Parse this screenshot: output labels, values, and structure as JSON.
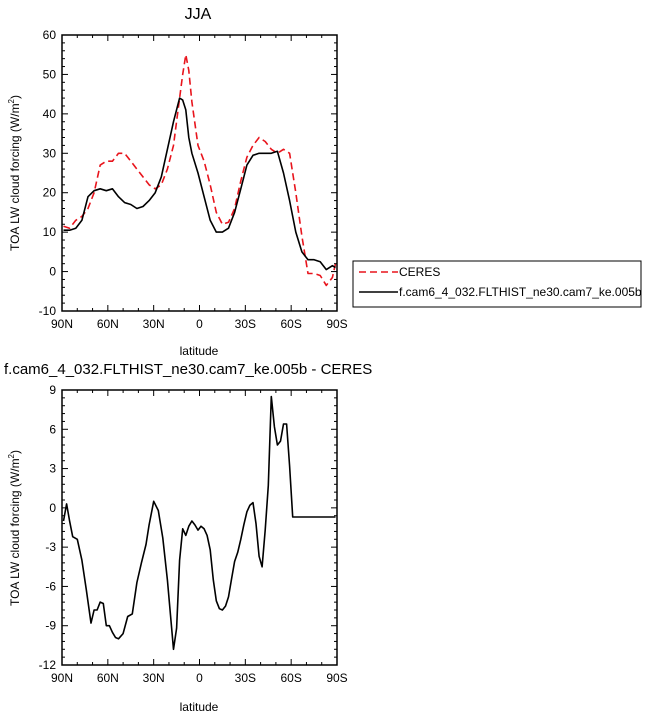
{
  "chart_data": [
    {
      "type": "line",
      "title": "JJA",
      "xlabel": "latitude",
      "ylabel": "TOA LW cloud forcing (W/m²)",
      "ylabel_parts": {
        "main": "TOA LW cloud forcing (W/m",
        "sup": "2",
        "end": ")"
      },
      "xlim": [
        -90,
        90
      ],
      "ylim": [
        -10,
        60
      ],
      "x_ticks": [
        -90,
        -60,
        -30,
        0,
        30,
        60,
        90
      ],
      "x_tick_labels": [
        "90N",
        "60N",
        "30N",
        "0",
        "30S",
        "60S",
        "90S"
      ],
      "y_ticks": [
        -10,
        0,
        10,
        20,
        30,
        40,
        50,
        60
      ],
      "y_tick_labels": [
        "-10",
        "0",
        "10",
        "20",
        "30",
        "40",
        "50",
        "60"
      ],
      "grid": false,
      "legend_placement": "outside-right",
      "series": [
        {
          "name": "CERES",
          "color": "#e8141c",
          "dash": "dashed",
          "x": [
            -89,
            -85,
            -81,
            -77,
            -73,
            -69,
            -65,
            -61,
            -57,
            -53,
            -49,
            -45,
            -41,
            -37,
            -33,
            -29,
            -25,
            -21,
            -17,
            -13,
            -11,
            -9,
            -7,
            -5,
            -1,
            3,
            7,
            11,
            15,
            19,
            23,
            27,
            31,
            35,
            39,
            43,
            47,
            51,
            55,
            59,
            63,
            67,
            71,
            75,
            79,
            83,
            87,
            89
          ],
          "y": [
            11.5,
            11,
            13,
            14,
            16,
            20,
            27,
            28,
            28,
            30,
            30,
            28,
            26,
            24,
            22,
            21,
            22,
            26,
            32,
            44,
            50,
            55,
            51,
            43,
            32,
            28,
            22,
            15,
            12,
            12.5,
            16,
            23,
            29,
            32,
            34,
            33,
            31,
            30,
            31,
            30,
            20,
            9,
            -0.5,
            -0.5,
            -1,
            -3.5,
            -1.5,
            2
          ]
        },
        {
          "name": "f.cam6_4_032.FLTHIST_ne30.cam7_ke.005b",
          "color": "#000000",
          "dash": "solid",
          "x": [
            -89,
            -85,
            -81,
            -77,
            -73,
            -69,
            -65,
            -61,
            -57,
            -53,
            -49,
            -45,
            -41,
            -37,
            -33,
            -29,
            -25,
            -21,
            -17,
            -13,
            -11,
            -9,
            -7,
            -5,
            -1,
            3,
            7,
            11,
            15,
            19,
            23,
            27,
            31,
            35,
            39,
            43,
            47,
            51,
            55,
            59,
            63,
            67,
            71,
            75,
            79,
            83,
            87,
            89
          ],
          "y": [
            10.5,
            10.5,
            11,
            13,
            19,
            20.5,
            21,
            20.5,
            21,
            19,
            17.5,
            17,
            16,
            16.5,
            18,
            20,
            24,
            31,
            38,
            44,
            43.5,
            41,
            34,
            30,
            25,
            19,
            13,
            10,
            10,
            11,
            15,
            21,
            27,
            29.5,
            30,
            30,
            30,
            30.5,
            25,
            18,
            10,
            5,
            3,
            3,
            2.5,
            0.5,
            1.5,
            1
          ]
        }
      ]
    },
    {
      "type": "line",
      "title": "f.cam6_4_032.FLTHIST_ne30.cam7_ke.005b - CERES",
      "xlabel": "latitude",
      "ylabel": "TOA LW cloud forcing (W/m²)",
      "ylabel_parts": {
        "main": "TOA LW cloud forcing (W/m",
        "sup": "2",
        "end": ")"
      },
      "xlim": [
        -90,
        90
      ],
      "ylim": [
        -12,
        9
      ],
      "x_ticks": [
        -90,
        -60,
        -30,
        0,
        30,
        60,
        90
      ],
      "x_tick_labels": [
        "90N",
        "60N",
        "30N",
        "0",
        "30S",
        "60S",
        "90S"
      ],
      "y_ticks": [
        -12,
        -9,
        -6,
        -3,
        0,
        3,
        6,
        9
      ],
      "y_tick_labels": [
        "-12",
        "-9",
        "-6",
        "-3",
        "0",
        "3",
        "6",
        "9"
      ],
      "grid": false,
      "series": [
        {
          "color": "#000000",
          "dash": "solid",
          "x": [
            -89,
            -87,
            -85,
            -83,
            -80,
            -77,
            -74,
            -71,
            -69,
            -67,
            -65,
            -63,
            -61,
            -59,
            -57,
            -55,
            -53,
            -50,
            -47,
            -44,
            -41,
            -38,
            -35,
            -33,
            -30,
            -27,
            -24,
            -21,
            -19,
            -17,
            -15,
            -13,
            -11,
            -9,
            -7,
            -5,
            -3,
            -1,
            1,
            3,
            5,
            7,
            9,
            11,
            13,
            15,
            17,
            19,
            21,
            23,
            25,
            27,
            29,
            31,
            33,
            35,
            37,
            39,
            41,
            43,
            45,
            47,
            49,
            51,
            53,
            55,
            57,
            59,
            61,
            63,
            65,
            67,
            69,
            71,
            73,
            75,
            77,
            79,
            81,
            83,
            85,
            87,
            89
          ],
          "y": [
            -1,
            0.3,
            -1,
            -2.2,
            -2.4,
            -4,
            -6.3,
            -8.8,
            -7.8,
            -7.8,
            -7.2,
            -7.3,
            -9,
            -9,
            -9.5,
            -9.9,
            -10,
            -9.6,
            -8.3,
            -8.1,
            -5.7,
            -4.2,
            -2.8,
            -1.3,
            0.5,
            -0.2,
            -2.3,
            -5.5,
            -8.2,
            -10.8,
            -9.2,
            -4,
            -1.6,
            -2.1,
            -1.4,
            -1,
            -1.3,
            -1.7,
            -1.4,
            -1.6,
            -2.1,
            -3.2,
            -5.5,
            -7.1,
            -7.7,
            -7.8,
            -7.5,
            -6.8,
            -5.4,
            -4.1,
            -3.4,
            -2.4,
            -1.3,
            -0.3,
            0.2,
            0.4,
            -1.2,
            -3.7,
            -4.5,
            -1.7,
            1.7,
            8.5,
            6.2,
            4.8,
            5.1,
            6.4,
            6.4,
            3.2,
            -0.7,
            -0.7,
            -0.7,
            -0.7,
            -0.7,
            -0.7,
            -0.7,
            -0.7,
            -0.7,
            -0.7,
            -0.7,
            -0.7,
            -0.7,
            -0.7,
            -0.7
          ]
        }
      ]
    }
  ]
}
